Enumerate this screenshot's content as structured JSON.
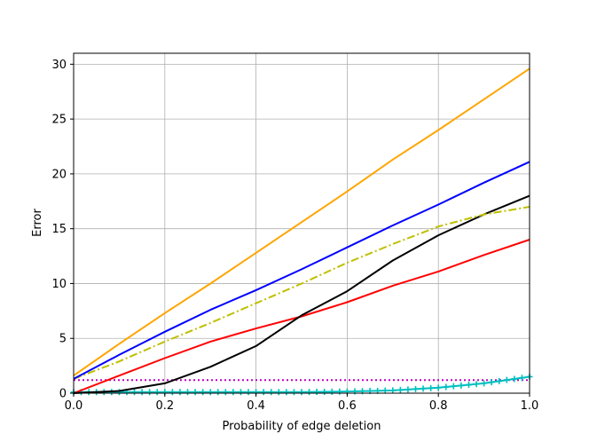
{
  "chart_data": {
    "type": "line",
    "title": "",
    "xlabel": "Probability of edge deletion",
    "ylabel": "Error",
    "xlim": [
      0.0,
      1.0
    ],
    "ylim": [
      0,
      31
    ],
    "xticks": [
      "0.0",
      "0.2",
      "0.4",
      "0.6",
      "0.8",
      "1.0"
    ],
    "yticks": [
      "0",
      "5",
      "10",
      "15",
      "20",
      "25",
      "30"
    ],
    "grid": true,
    "x": [
      0.0,
      0.1,
      0.2,
      0.3,
      0.4,
      0.5,
      0.6,
      0.7,
      0.8,
      0.9,
      1.0
    ],
    "series": [
      {
        "color": "#ffa500",
        "style": "solid",
        "marker": "none",
        "values": [
          1.6,
          4.5,
          7.3,
          10.0,
          12.8,
          15.6,
          18.4,
          21.3,
          24.0,
          26.8,
          29.6
        ]
      },
      {
        "color": "#0000ff",
        "style": "solid",
        "marker": "none",
        "values": [
          1.3,
          3.5,
          5.6,
          7.6,
          9.4,
          11.3,
          13.3,
          15.3,
          17.2,
          19.2,
          21.1
        ]
      },
      {
        "color": "#bfbf00",
        "style": "dashdot",
        "marker": "none",
        "values": [
          1.3,
          2.9,
          4.7,
          6.4,
          8.2,
          10.0,
          11.9,
          13.6,
          15.2,
          16.3,
          17.0
        ]
      },
      {
        "color": "#ff0000",
        "style": "solid",
        "marker": "none",
        "values": [
          0.0,
          1.6,
          3.2,
          4.7,
          5.9,
          7.0,
          8.3,
          9.8,
          11.1,
          12.6,
          14.0
        ]
      },
      {
        "color": "#000000",
        "style": "solid",
        "marker": "none",
        "values": [
          0.0,
          0.2,
          0.9,
          2.4,
          4.3,
          7.1,
          9.3,
          12.1,
          14.4,
          16.3,
          18.0
        ]
      },
      {
        "color": "#bf00bf",
        "style": "dotted",
        "marker": "none",
        "values": [
          1.2,
          1.2,
          1.2,
          1.2,
          1.2,
          1.2,
          1.2,
          1.2,
          1.2,
          1.2,
          1.2
        ]
      },
      {
        "color": "#00bfbf",
        "style": "solid",
        "marker": "plus",
        "values": [
          0.1,
          0.1,
          0.1,
          0.1,
          0.1,
          0.1,
          0.15,
          0.25,
          0.5,
          0.9,
          1.5
        ]
      }
    ]
  }
}
